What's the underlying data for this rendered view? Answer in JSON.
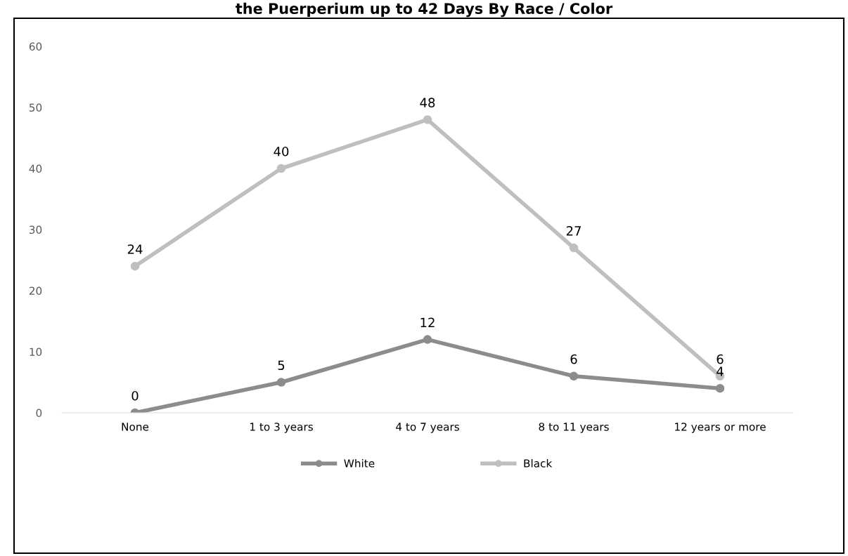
{
  "chart_data": {
    "type": "line",
    "title": "the Puerperium up to 42 Days By Race / Color",
    "categories": [
      "None",
      "1 to 3 years",
      "4 to 7 years",
      "8 to 11 years",
      "12 years or more"
    ],
    "series": [
      {
        "name": "White",
        "color": "#8c8c8c",
        "values": [
          0,
          5,
          12,
          6,
          4
        ]
      },
      {
        "name": "Black",
        "color": "#bfbfbf",
        "values": [
          24,
          40,
          48,
          27,
          6
        ]
      }
    ],
    "ylim": [
      0,
      60
    ],
    "yticks": [
      0,
      10,
      20,
      30,
      40,
      50,
      60
    ],
    "grid": false,
    "legend": "bottom",
    "marker": "circle",
    "line_style": "solid",
    "data_labels": true
  }
}
